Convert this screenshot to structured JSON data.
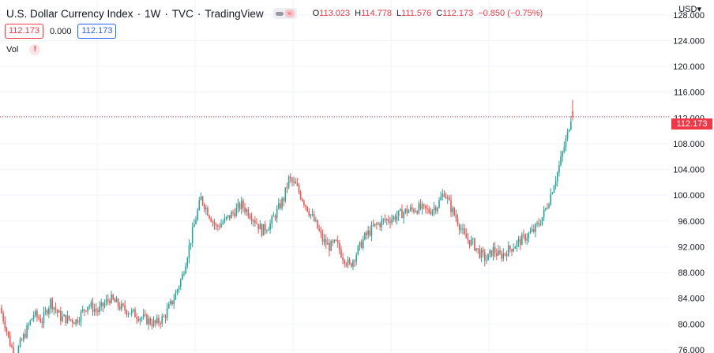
{
  "header": {
    "title": "U.S. Dollar Currency Index",
    "interval": "1W",
    "exchange": "TVC",
    "source": "TradingView",
    "ohlc": [
      {
        "key": "O",
        "value": "113.023"
      },
      {
        "key": "H",
        "value": "114.778"
      },
      {
        "key": "L",
        "value": "111.576"
      },
      {
        "key": "C",
        "value": "112.173"
      },
      {
        "key": "",
        "value": "−0.850 (−0.75%)"
      }
    ]
  },
  "price_row": {
    "bid": "112.173",
    "spread": "0.000",
    "ask": "112.173"
  },
  "volume_label": "Vol",
  "volume_warning": "!",
  "currency_label": "USD",
  "currency_caret": "▾",
  "last_price_label": "112.173",
  "colors": {
    "up": "#26a69a",
    "down": "#ef5350",
    "accent": "#f23645",
    "grid": "#f0f3fa"
  },
  "chart_data": {
    "type": "candlestick",
    "interval": "1W",
    "last_price": 112.173,
    "y_ticks": [
      "76.000",
      "80.000",
      "84.000",
      "88.000",
      "92.000",
      "96.000",
      "100.000",
      "104.000",
      "108.000",
      "112.000",
      "116.000",
      "120.000",
      "124.000",
      "128.000"
    ],
    "ylim": [
      75.5,
      130.3
    ],
    "grid": true,
    "trend_points": [
      [
        0,
        82.5
      ],
      [
        3,
        80.0
      ],
      [
        6,
        77.0
      ],
      [
        9,
        75.0
      ],
      [
        14,
        78.0
      ],
      [
        20,
        81.5
      ],
      [
        25,
        80.5
      ],
      [
        30,
        83.5
      ],
      [
        36,
        81.0
      ],
      [
        45,
        80.5
      ],
      [
        52,
        83.0
      ],
      [
        58,
        82.0
      ],
      [
        65,
        84.0
      ],
      [
        72,
        82.5
      ],
      [
        80,
        81.5
      ],
      [
        92,
        80.0
      ],
      [
        97,
        81.0
      ],
      [
        103,
        84.0
      ],
      [
        108,
        87.5
      ],
      [
        112,
        92.0
      ],
      [
        116,
        96.5
      ],
      [
        119,
        99.5
      ],
      [
        124,
        97.0
      ],
      [
        128,
        95.0
      ],
      [
        133,
        96.0
      ],
      [
        137,
        97.0
      ],
      [
        143,
        98.5
      ],
      [
        150,
        96.5
      ],
      [
        155,
        94.5
      ],
      [
        160,
        95.5
      ],
      [
        164,
        97.5
      ],
      [
        168,
        99.5
      ],
      [
        171,
        102.5
      ],
      [
        175,
        101.5
      ],
      [
        179,
        99.5
      ],
      [
        183,
        97.5
      ],
      [
        187,
        95.5
      ],
      [
        191,
        93.0
      ],
      [
        195,
        92.0
      ],
      [
        199,
        92.5
      ],
      [
        203,
        90.5
      ],
      [
        207,
        89.0
      ],
      [
        211,
        91.0
      ],
      [
        216,
        93.5
      ],
      [
        221,
        95.0
      ],
      [
        227,
        96.0
      ],
      [
        233,
        96.5
      ],
      [
        240,
        97.5
      ],
      [
        248,
        98.0
      ],
      [
        254,
        97.5
      ],
      [
        259,
        98.5
      ],
      [
        263,
        100.5
      ],
      [
        267,
        98.0
      ],
      [
        271,
        96.0
      ],
      [
        275,
        93.5
      ],
      [
        280,
        92.5
      ],
      [
        284,
        91.0
      ],
      [
        288,
        90.0
      ],
      [
        292,
        91.5
      ],
      [
        296,
        90.5
      ],
      [
        301,
        91.5
      ],
      [
        306,
        92.5
      ],
      [
        311,
        93.5
      ],
      [
        316,
        94.5
      ],
      [
        320,
        96.0
      ],
      [
        324,
        98.5
      ],
      [
        327,
        101.0
      ],
      [
        330,
        103.5
      ],
      [
        333,
        106.5
      ],
      [
        336,
        109.5
      ],
      [
        338,
        112.2
      ]
    ],
    "last_ohlc": {
      "open": 113.023,
      "high": 114.778,
      "low": 111.576,
      "close": 112.173
    }
  }
}
